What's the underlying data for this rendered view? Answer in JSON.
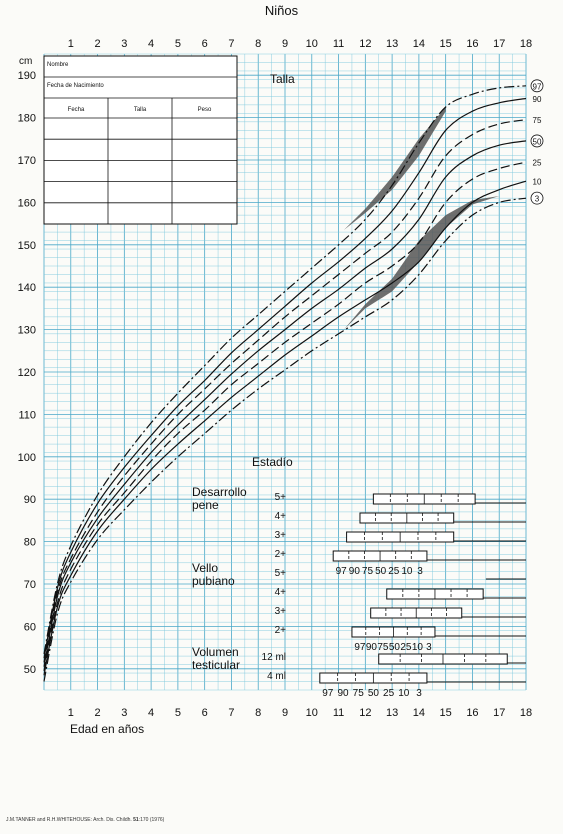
{
  "chart_data": {
    "type": "line",
    "title": "Niños",
    "section_label": "Talla",
    "xlabel": "Edad en años",
    "ylabel_unit": "cm",
    "xlim": [
      0,
      18
    ],
    "ylim": [
      45,
      195
    ],
    "x_ticks": [
      1,
      2,
      3,
      4,
      5,
      6,
      7,
      8,
      9,
      10,
      11,
      12,
      13,
      14,
      15,
      16,
      17,
      18
    ],
    "y_ticks": [
      50,
      60,
      70,
      80,
      90,
      100,
      110,
      120,
      130,
      140,
      150,
      160,
      170,
      180,
      190
    ],
    "grid": true,
    "table": {
      "name_label": "Nombre",
      "dob_label": "Fecha de Nacimiento",
      "columns": [
        "Fecha",
        "Talla",
        "Peso"
      ],
      "rows": 5
    },
    "series": [
      {
        "name": "97",
        "circled": true,
        "style": "dashdot",
        "points": [
          [
            0,
            53.5
          ],
          [
            0.5,
            70
          ],
          [
            1,
            79
          ],
          [
            2,
            91
          ],
          [
            3,
            100
          ],
          [
            4,
            108
          ],
          [
            5,
            115
          ],
          [
            6,
            121.5
          ],
          [
            7,
            128
          ],
          [
            8,
            133.5
          ],
          [
            9,
            139
          ],
          [
            10,
            144.5
          ],
          [
            11,
            150
          ],
          [
            12,
            156
          ],
          [
            13,
            164
          ],
          [
            14,
            174
          ],
          [
            15,
            182.5
          ],
          [
            16,
            185.5
          ],
          [
            17,
            187
          ],
          [
            18,
            187.5
          ]
        ]
      },
      {
        "name": "90",
        "circled": false,
        "style": "solid",
        "points": [
          [
            0,
            52.5
          ],
          [
            0.5,
            69
          ],
          [
            1,
            77.5
          ],
          [
            2,
            89
          ],
          [
            3,
            97.5
          ],
          [
            4,
            105
          ],
          [
            5,
            112
          ],
          [
            6,
            118
          ],
          [
            7,
            124.5
          ],
          [
            8,
            130
          ],
          [
            9,
            135.5
          ],
          [
            10,
            141
          ],
          [
            11,
            146
          ],
          [
            12,
            151.5
          ],
          [
            13,
            158
          ],
          [
            14,
            167
          ],
          [
            15,
            177
          ],
          [
            16,
            181.5
          ],
          [
            17,
            183.5
          ],
          [
            18,
            184.5
          ]
        ]
      },
      {
        "name": "75",
        "circled": false,
        "style": "dashed",
        "points": [
          [
            0,
            51.5
          ],
          [
            0.5,
            68
          ],
          [
            1,
            76
          ],
          [
            2,
            87
          ],
          [
            3,
            95.5
          ],
          [
            4,
            103
          ],
          [
            5,
            110
          ],
          [
            6,
            116
          ],
          [
            7,
            122
          ],
          [
            8,
            127.5
          ],
          [
            9,
            133
          ],
          [
            10,
            138
          ],
          [
            11,
            143
          ],
          [
            12,
            148
          ],
          [
            13,
            153
          ],
          [
            14,
            161
          ],
          [
            15,
            171
          ],
          [
            16,
            176
          ],
          [
            17,
            178.5
          ],
          [
            18,
            179.5
          ]
        ]
      },
      {
        "name": "50",
        "circled": true,
        "style": "solid",
        "points": [
          [
            0,
            50.5
          ],
          [
            0.5,
            67
          ],
          [
            1,
            75
          ],
          [
            2,
            85.5
          ],
          [
            3,
            93.5
          ],
          [
            4,
            101
          ],
          [
            5,
            107.5
          ],
          [
            6,
            113.5
          ],
          [
            7,
            119.5
          ],
          [
            8,
            125
          ],
          [
            9,
            130
          ],
          [
            10,
            135
          ],
          [
            11,
            139.5
          ],
          [
            12,
            144.5
          ],
          [
            13,
            149
          ],
          [
            14,
            156
          ],
          [
            15,
            166
          ],
          [
            16,
            171
          ],
          [
            17,
            173.5
          ],
          [
            18,
            174.5
          ]
        ]
      },
      {
        "name": "25",
        "circled": false,
        "style": "dashed",
        "points": [
          [
            0,
            49.5
          ],
          [
            0.5,
            65.5
          ],
          [
            1,
            73.5
          ],
          [
            2,
            84
          ],
          [
            3,
            91.5
          ],
          [
            4,
            99
          ],
          [
            5,
            105.5
          ],
          [
            6,
            111
          ],
          [
            7,
            117
          ],
          [
            8,
            122
          ],
          [
            9,
            127
          ],
          [
            10,
            131.5
          ],
          [
            11,
            136
          ],
          [
            12,
            141
          ],
          [
            13,
            145
          ],
          [
            14,
            150.5
          ],
          [
            15,
            160
          ],
          [
            16,
            165.5
          ],
          [
            17,
            168
          ],
          [
            18,
            169.5
          ]
        ]
      },
      {
        "name": "10",
        "circled": false,
        "style": "solid",
        "points": [
          [
            0,
            48.5
          ],
          [
            0.5,
            64.5
          ],
          [
            1,
            72
          ],
          [
            2,
            82.5
          ],
          [
            3,
            90
          ],
          [
            4,
            97
          ],
          [
            5,
            103
          ],
          [
            6,
            108.5
          ],
          [
            7,
            114
          ],
          [
            8,
            119
          ],
          [
            9,
            124
          ],
          [
            10,
            128.5
          ],
          [
            11,
            133
          ],
          [
            12,
            137
          ],
          [
            13,
            141
          ],
          [
            14,
            146
          ],
          [
            15,
            154
          ],
          [
            16,
            160
          ],
          [
            17,
            163
          ],
          [
            18,
            165
          ]
        ]
      },
      {
        "name": "3",
        "circled": true,
        "style": "dashdot",
        "points": [
          [
            0,
            47
          ],
          [
            0.5,
            63
          ],
          [
            1,
            70.5
          ],
          [
            2,
            80.5
          ],
          [
            3,
            87.5
          ],
          [
            4,
            94
          ],
          [
            5,
            100
          ],
          [
            6,
            105.5
          ],
          [
            7,
            111
          ],
          [
            8,
            116
          ],
          [
            9,
            120.5
          ],
          [
            10,
            125
          ],
          [
            11,
            129
          ],
          [
            12,
            133
          ],
          [
            13,
            137
          ],
          [
            14,
            143
          ],
          [
            15,
            151
          ],
          [
            16,
            157
          ],
          [
            17,
            160
          ],
          [
            18,
            161
          ]
        ]
      }
    ],
    "shaded_bands": [
      {
        "upper": [
          [
            11.2,
            153.5
          ],
          [
            12,
            158.5
          ],
          [
            13,
            166
          ],
          [
            14,
            175
          ],
          [
            15,
            182.5
          ]
        ],
        "lower": [
          [
            11.2,
            153.5
          ],
          [
            12,
            157.5
          ],
          [
            13,
            163
          ],
          [
            14,
            171
          ],
          [
            15,
            181.5
          ]
        ]
      },
      {
        "upper": [
          [
            11.2,
            130
          ],
          [
            12,
            136
          ],
          [
            13,
            142
          ],
          [
            14,
            151
          ],
          [
            15,
            157
          ],
          [
            16,
            160.5
          ],
          [
            17,
            161.5
          ]
        ],
        "lower": [
          [
            11.2,
            130
          ],
          [
            12,
            135
          ],
          [
            13,
            139
          ],
          [
            14,
            146
          ],
          [
            15,
            154
          ],
          [
            16,
            159.5
          ],
          [
            17,
            161.5
          ]
        ]
      }
    ],
    "stages_title": "Estadío",
    "stage_groups": [
      {
        "label_lines": [
          "Desarrollo",
          "pene"
        ],
        "rows": [
          {
            "label": "5+",
            "start": 12.3,
            "end": 16.1
          },
          {
            "label": "4+",
            "start": 11.8,
            "end": 15.3
          },
          {
            "label": "3+",
            "start": 11.3,
            "end": 15.3
          },
          {
            "label": "2+",
            "start": 10.8,
            "end": 14.3
          }
        ],
        "percentiles": [
          "97",
          "90",
          "75",
          "50",
          "25",
          "10",
          "3"
        ]
      },
      {
        "label_lines": [
          "Vello",
          "pubiano"
        ],
        "rows": [
          {
            "label": "5+",
            "start": 0,
            "end": 0
          },
          {
            "label": "4+",
            "start": 12.8,
            "end": 16.4
          },
          {
            "label": "3+",
            "start": 12.2,
            "end": 15.6
          },
          {
            "label": "2+",
            "start": 11.5,
            "end": 14.6
          }
        ],
        "percentiles": [
          "97",
          "90",
          "75",
          "50",
          "25",
          "10",
          "3"
        ]
      },
      {
        "label_lines": [
          "Volumen",
          "testicular"
        ],
        "rows": [
          {
            "label": "12 ml",
            "start": 12.5,
            "end": 17.3
          },
          {
            "label": "4 ml",
            "start": 10.3,
            "end": 14.3
          }
        ],
        "percentiles": [
          "97",
          "90",
          "75",
          "50",
          "25",
          "10",
          "3"
        ]
      }
    ],
    "source_prefix": "J.M.TANNER and R.H.WHITEHOUSE: Arch. Dis. Childh. ",
    "source_volume": "51",
    "source_suffix": ":170 (1976)",
    "colors": {
      "grid": "#7ec8dc",
      "grid_major": "#4aa8c8",
      "line": "#111111",
      "band": "#555555"
    }
  }
}
